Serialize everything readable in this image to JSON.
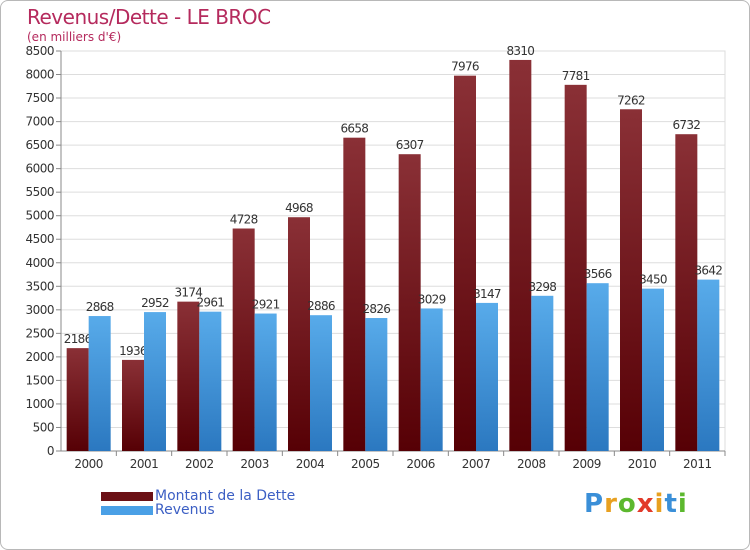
{
  "title": "Revenus/Dette - LE BROC",
  "subtitle": "(en milliers d'€)",
  "logo": "Proxiti",
  "chart_data": {
    "type": "bar",
    "title": "Revenus/Dette - LE BROC",
    "subtitle": "(en milliers d'€)",
    "categories": [
      "2000",
      "2001",
      "2002",
      "2003",
      "2004",
      "2005",
      "2006",
      "2007",
      "2008",
      "2009",
      "2010",
      "2011"
    ],
    "series": [
      {
        "name": "Montant de la Dette",
        "color": "#6b1015",
        "values": [
          2186,
          1936,
          3174,
          4728,
          4968,
          6658,
          6307,
          7976,
          8310,
          7781,
          7262,
          6732
        ]
      },
      {
        "name": "Revenus",
        "color": "#4aa0e6",
        "values": [
          2868,
          2952,
          2961,
          2921,
          2886,
          2826,
          3029,
          3147,
          3298,
          3566,
          3450,
          3642
        ]
      }
    ],
    "ylim": [
      0,
      8500
    ],
    "yticks": [
      0,
      500,
      1000,
      1500,
      2000,
      2500,
      3000,
      3500,
      4000,
      4500,
      5000,
      5500,
      6000,
      6500,
      7000,
      7500,
      8000,
      8500
    ],
    "xlabel": "",
    "ylabel": "",
    "grid": "horizontal",
    "legend_position": "bottom-left"
  }
}
